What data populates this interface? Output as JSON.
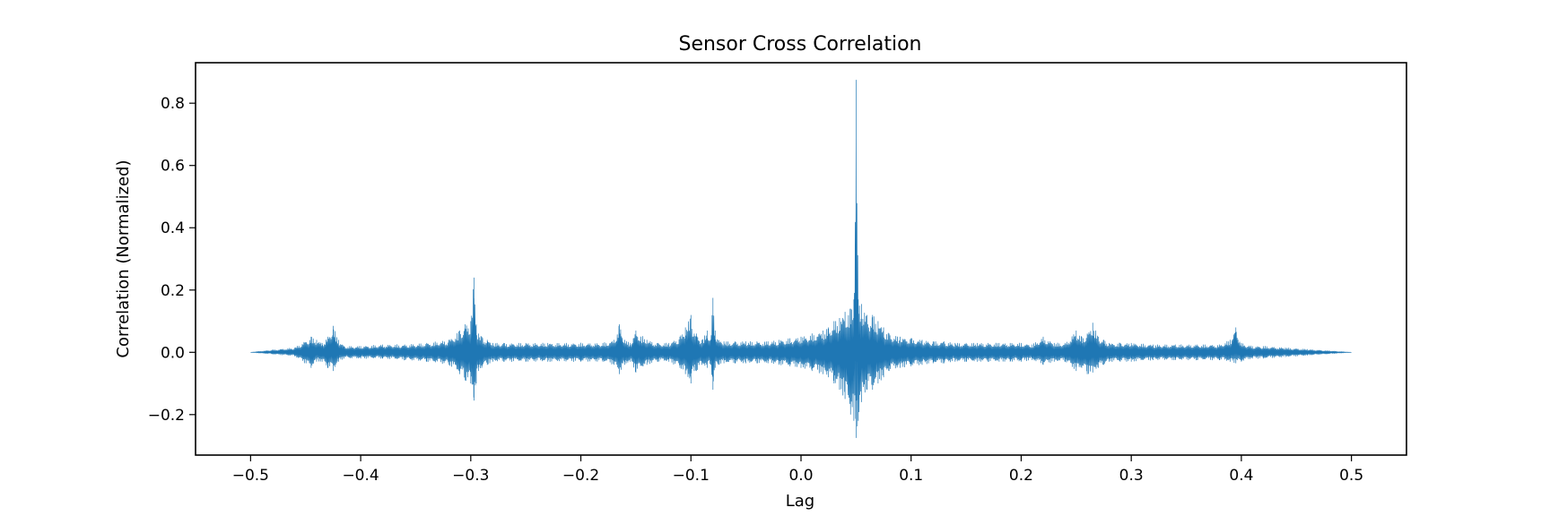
{
  "chart_data": {
    "type": "line",
    "title": "Sensor Cross Correlation",
    "xlabel": "Lag",
    "ylabel": "Correlation (Normalized)",
    "xlim": [
      -0.55,
      0.55
    ],
    "ylim": [
      -0.33,
      0.93
    ],
    "xticks": [
      -0.5,
      -0.4,
      -0.3,
      -0.2,
      -0.1,
      0.0,
      0.1,
      0.2,
      0.3,
      0.4,
      0.5
    ],
    "xtick_labels": [
      "−0.5",
      "−0.4",
      "−0.3",
      "−0.2",
      "−0.1",
      "0.0",
      "0.1",
      "0.2",
      "0.3",
      "0.4",
      "0.5"
    ],
    "yticks": [
      -0.2,
      0.0,
      0.2,
      0.4,
      0.6,
      0.8
    ],
    "ytick_labels": [
      "−0.2",
      "0.0",
      "0.2",
      "0.4",
      "0.6",
      "0.8"
    ],
    "grid": false,
    "legend": "none",
    "color": "#1f77b4",
    "series": [
      {
        "x": [
          -0.5,
          -0.48,
          -0.46,
          -0.445,
          -0.44,
          -0.435,
          -0.43,
          -0.425,
          -0.42,
          -0.415,
          -0.4,
          -0.38,
          -0.36,
          -0.34,
          -0.32,
          -0.31,
          -0.305,
          -0.3,
          -0.297,
          -0.295,
          -0.293,
          -0.29,
          -0.285,
          -0.28,
          -0.27,
          -0.25,
          -0.23,
          -0.2,
          -0.18,
          -0.17,
          -0.165,
          -0.16,
          -0.155,
          -0.15,
          -0.14,
          -0.13,
          -0.12,
          -0.11,
          -0.105,
          -0.1,
          -0.097,
          -0.095,
          -0.09,
          -0.085,
          -0.082,
          -0.08,
          -0.078,
          -0.075,
          -0.07,
          -0.06,
          -0.05,
          -0.04,
          -0.03,
          -0.02,
          -0.01,
          0.0,
          0.01,
          0.02,
          0.025,
          0.03,
          0.035,
          0.04,
          0.045,
          0.048,
          0.05,
          0.052,
          0.055,
          0.06,
          0.065,
          0.07,
          0.075,
          0.08,
          0.09,
          0.1,
          0.11,
          0.12,
          0.13,
          0.14,
          0.15,
          0.16,
          0.17,
          0.18,
          0.19,
          0.2,
          0.21,
          0.22,
          0.23,
          0.24,
          0.25,
          0.255,
          0.26,
          0.265,
          0.27,
          0.275,
          0.28,
          0.29,
          0.3,
          0.32,
          0.34,
          0.36,
          0.38,
          0.39,
          0.395,
          0.4,
          0.41,
          0.42,
          0.44,
          0.46,
          0.48,
          0.5
        ],
        "upper": [
          0.0,
          0.008,
          0.015,
          0.05,
          0.04,
          0.03,
          0.05,
          0.085,
          0.04,
          0.02,
          0.02,
          0.025,
          0.025,
          0.03,
          0.04,
          0.07,
          0.09,
          0.1,
          0.24,
          0.09,
          0.06,
          0.05,
          0.04,
          0.03,
          0.03,
          0.03,
          0.03,
          0.03,
          0.03,
          0.04,
          0.09,
          0.04,
          0.03,
          0.07,
          0.04,
          0.03,
          0.03,
          0.05,
          0.08,
          0.12,
          0.06,
          0.06,
          0.04,
          0.07,
          0.04,
          0.175,
          0.07,
          0.04,
          0.035,
          0.035,
          0.035,
          0.035,
          0.035,
          0.04,
          0.045,
          0.05,
          0.06,
          0.07,
          0.08,
          0.1,
          0.11,
          0.13,
          0.14,
          0.17,
          0.875,
          0.17,
          0.155,
          0.12,
          0.12,
          0.1,
          0.08,
          0.06,
          0.05,
          0.045,
          0.04,
          0.035,
          0.035,
          0.03,
          0.03,
          0.03,
          0.03,
          0.03,
          0.03,
          0.03,
          0.025,
          0.05,
          0.03,
          0.03,
          0.07,
          0.05,
          0.06,
          0.095,
          0.05,
          0.04,
          0.03,
          0.03,
          0.03,
          0.025,
          0.025,
          0.025,
          0.025,
          0.04,
          0.08,
          0.03,
          0.02,
          0.02,
          0.015,
          0.01,
          0.005,
          0.0
        ],
        "lower": [
          0.0,
          -0.006,
          -0.012,
          -0.05,
          -0.03,
          -0.03,
          -0.05,
          -0.06,
          -0.03,
          -0.02,
          -0.02,
          -0.02,
          -0.025,
          -0.03,
          -0.04,
          -0.07,
          -0.09,
          -0.1,
          -0.155,
          -0.1,
          -0.06,
          -0.05,
          -0.04,
          -0.03,
          -0.03,
          -0.03,
          -0.03,
          -0.03,
          -0.03,
          -0.04,
          -0.07,
          -0.04,
          -0.03,
          -0.065,
          -0.04,
          -0.03,
          -0.03,
          -0.05,
          -0.07,
          -0.1,
          -0.06,
          -0.06,
          -0.04,
          -0.05,
          -0.04,
          -0.12,
          -0.05,
          -0.04,
          -0.035,
          -0.035,
          -0.035,
          -0.035,
          -0.035,
          -0.04,
          -0.045,
          -0.05,
          -0.06,
          -0.07,
          -0.08,
          -0.1,
          -0.12,
          -0.15,
          -0.2,
          -0.22,
          -0.275,
          -0.22,
          -0.16,
          -0.12,
          -0.12,
          -0.1,
          -0.08,
          -0.06,
          -0.05,
          -0.045,
          -0.04,
          -0.035,
          -0.035,
          -0.03,
          -0.03,
          -0.03,
          -0.03,
          -0.03,
          -0.03,
          -0.03,
          -0.025,
          -0.04,
          -0.03,
          -0.03,
          -0.06,
          -0.05,
          -0.07,
          -0.065,
          -0.05,
          -0.04,
          -0.03,
          -0.03,
          -0.03,
          -0.025,
          -0.025,
          -0.025,
          -0.025,
          -0.03,
          -0.035,
          -0.03,
          -0.02,
          -0.02,
          -0.015,
          -0.01,
          -0.005,
          0.0
        ]
      }
    ]
  }
}
